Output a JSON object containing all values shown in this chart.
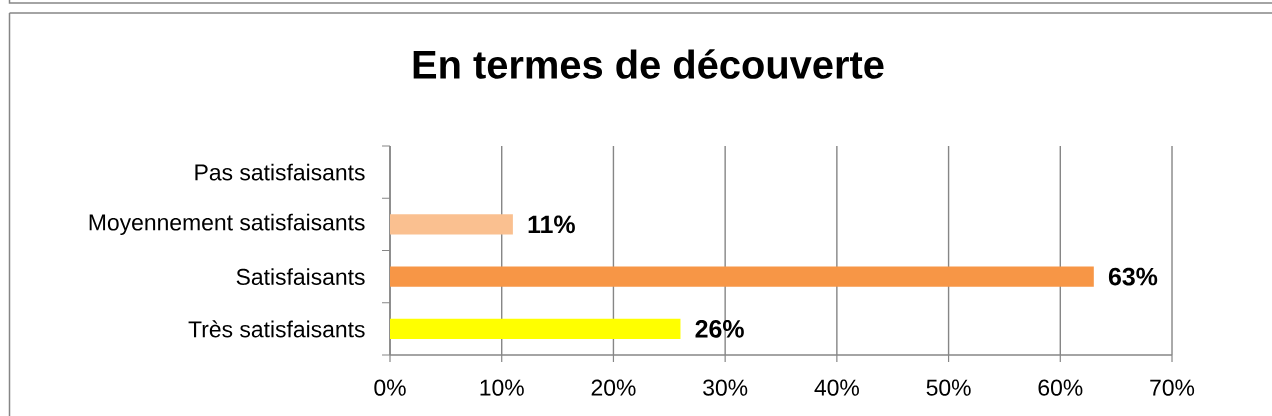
{
  "chart_data": {
    "type": "bar",
    "orientation": "horizontal",
    "title": "En termes de découverte",
    "categories": [
      "Pas satisfaisants",
      "Moyennement satisfaisants",
      "Satisfaisants",
      "Très satisfaisants"
    ],
    "values": [
      null,
      11,
      63,
      26
    ],
    "colors": [
      null,
      "#fac090",
      "#f79646",
      "#ffff00"
    ],
    "value_labels": [
      null,
      "11%",
      "63%",
      "26%"
    ],
    "xlim": [
      0,
      70
    ],
    "xticks": [
      {
        "value": 0,
        "label": "0%"
      },
      {
        "value": 10,
        "label": "10%"
      },
      {
        "value": 20,
        "label": "20%"
      },
      {
        "value": 30,
        "label": "30%"
      },
      {
        "value": 40,
        "label": "40%"
      },
      {
        "value": 50,
        "label": "50%"
      },
      {
        "value": 60,
        "label": "60%"
      },
      {
        "value": 70,
        "label": "70%"
      }
    ],
    "grid": "x"
  }
}
